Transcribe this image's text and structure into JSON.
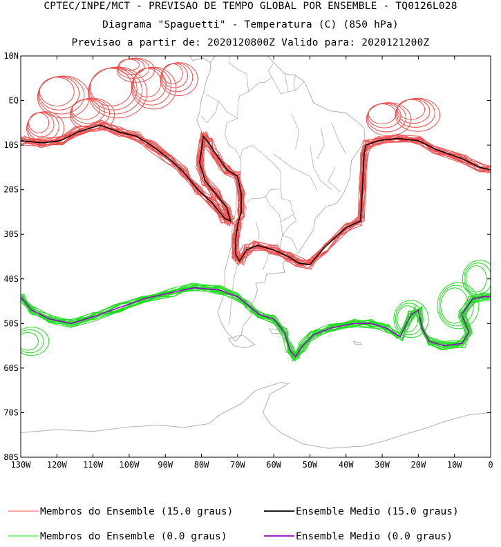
{
  "header": {
    "line1": "CPTEC/INPE/MCT - PREVISAO DE TEMPO GLOBAL POR ENSEMBLE - TQ0126L028",
    "line2": "Diagrama \"Spaguetti\" - Temperatura (C) (850 hPa)",
    "line3": "Previsao a partir de: 2020120800Z  Valido para: 2020121200Z"
  },
  "map": {
    "lon_range": [
      -130,
      0
    ],
    "lat_range": [
      -80,
      10
    ],
    "lat_labels": [
      "10N",
      "EQ",
      "10S",
      "20S",
      "30S",
      "40S",
      "50S",
      "60S",
      "70S",
      "80S"
    ],
    "lon_labels": [
      "130W",
      "120W",
      "110W",
      "100W",
      "90W",
      "80W",
      "70W",
      "60W",
      "50W",
      "40W",
      "30W",
      "20W",
      "10W",
      "0"
    ],
    "coastline_color": "#b0b0b0"
  },
  "legend": {
    "items": [
      {
        "label": "Membros do Ensemble (15.0 graus)",
        "color": "#f05050"
      },
      {
        "label": "Ensemble Medio (15.0 graus)",
        "color": "#000000"
      },
      {
        "label": "Membros do Ensemble (0.0 graus)",
        "color": "#22dd22"
      },
      {
        "label": "Ensemble Medio (0.0 graus)",
        "color": "#9900cc"
      }
    ]
  }
}
